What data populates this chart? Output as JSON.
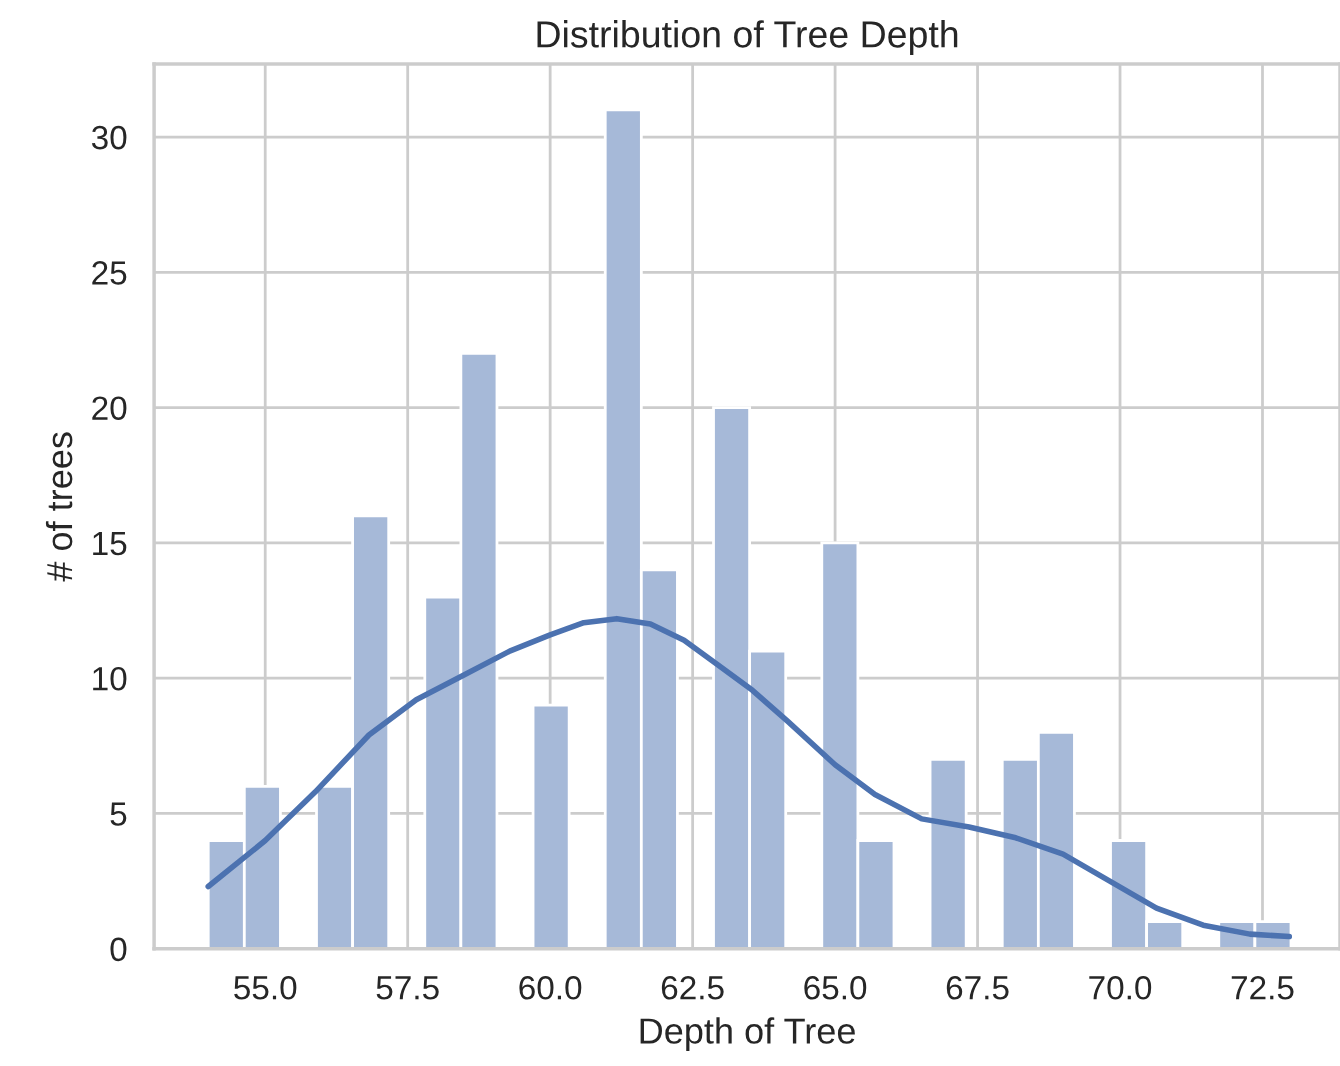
{
  "chart_data": {
    "type": "histogram",
    "title": "Distribution of Tree Depth",
    "xlabel": "Depth of Tree",
    "ylabel": "# of trees",
    "bins": [
      54.0,
      54.6333,
      55.2667,
      55.9,
      56.5333,
      57.1667,
      57.8,
      58.4333,
      59.0667,
      59.7,
      60.3333,
      60.9667,
      61.6,
      62.2333,
      62.8667,
      63.5,
      64.1333,
      64.7667,
      65.4,
      66.0333,
      66.6667,
      67.3,
      67.9333,
      68.5667,
      69.2,
      69.8333,
      70.4667,
      71.1,
      71.7333,
      72.3667,
      73.0
    ],
    "series": [
      {
        "color": "#a6b9d8",
        "values": [
          4,
          6,
          0,
          6,
          16,
          0,
          13,
          22,
          0,
          9,
          0,
          31,
          14,
          0,
          20,
          11,
          0,
          15,
          4,
          0,
          7,
          0,
          7,
          8,
          0,
          4,
          1,
          0,
          1,
          1
        ]
      },
      {
        "type": "line",
        "color": "#4c72b0",
        "x": [
          54.0,
          55.0,
          55.88,
          56.82,
          57.65,
          58.47,
          59.29,
          60.0,
          60.59,
          61.17,
          61.76,
          62.35,
          62.94,
          63.55,
          64.17,
          65.0,
          65.7,
          66.52,
          67.35,
          68.17,
          69.0,
          69.82,
          70.64,
          71.46,
          72.28,
          72.97
        ],
        "values": [
          2.3,
          4.0,
          5.8,
          7.9,
          9.2,
          10.1,
          11.0,
          11.6,
          12.05,
          12.2,
          12.0,
          11.4,
          10.5,
          9.55,
          8.4,
          6.8,
          5.7,
          4.8,
          4.5,
          4.1,
          3.5,
          2.5,
          1.5,
          0.87,
          0.54,
          0.45
        ]
      }
    ],
    "xlim": [
      53.05,
      73.86
    ],
    "ylim": [
      0,
      32.7
    ],
    "xticks": [
      {
        "value": 55,
        "label": "55.0"
      },
      {
        "value": 57.5,
        "label": "57.5"
      },
      {
        "value": 60,
        "label": "60.0"
      },
      {
        "value": 62.5,
        "label": "62.5"
      },
      {
        "value": 65,
        "label": "65.0"
      },
      {
        "value": 67.5,
        "label": "67.5"
      },
      {
        "value": 70,
        "label": "70.0"
      },
      {
        "value": 72.5,
        "label": "72.5"
      }
    ],
    "yticks": [
      0,
      5,
      10,
      15,
      20,
      25,
      30
    ],
    "grid": true
  }
}
